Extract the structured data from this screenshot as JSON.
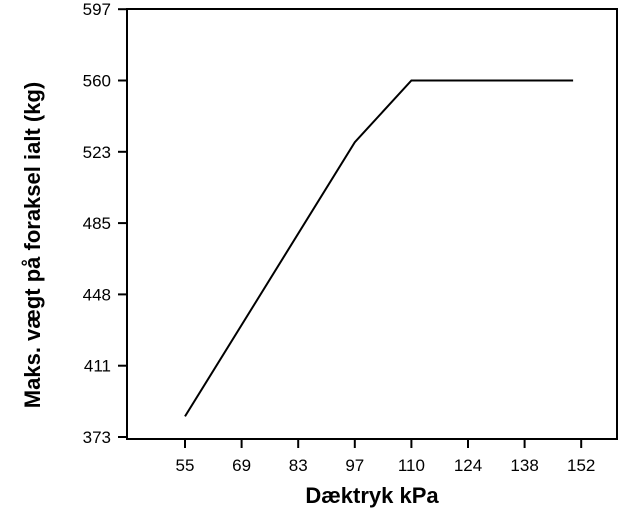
{
  "chart_data": {
    "type": "line",
    "title": "",
    "xlabel": "Dæktryk kPa",
    "ylabel": "Maks. vægt på foraksel ialt (kg)",
    "x_ticks": [
      "55",
      "69",
      "83",
      "97",
      "110",
      "124",
      "138",
      "152"
    ],
    "y_ticks": [
      "373",
      "411",
      "448",
      "485",
      "523",
      "560",
      "597"
    ],
    "series": [
      {
        "points": [
          {
            "x": 55,
            "y": 384
          },
          {
            "x": 97,
            "y": 528
          },
          {
            "x": 110,
            "y": 560
          },
          {
            "x": 150,
            "y": 560
          }
        ]
      }
    ],
    "line_color": "#000000",
    "grid": false,
    "legend": "none"
  }
}
